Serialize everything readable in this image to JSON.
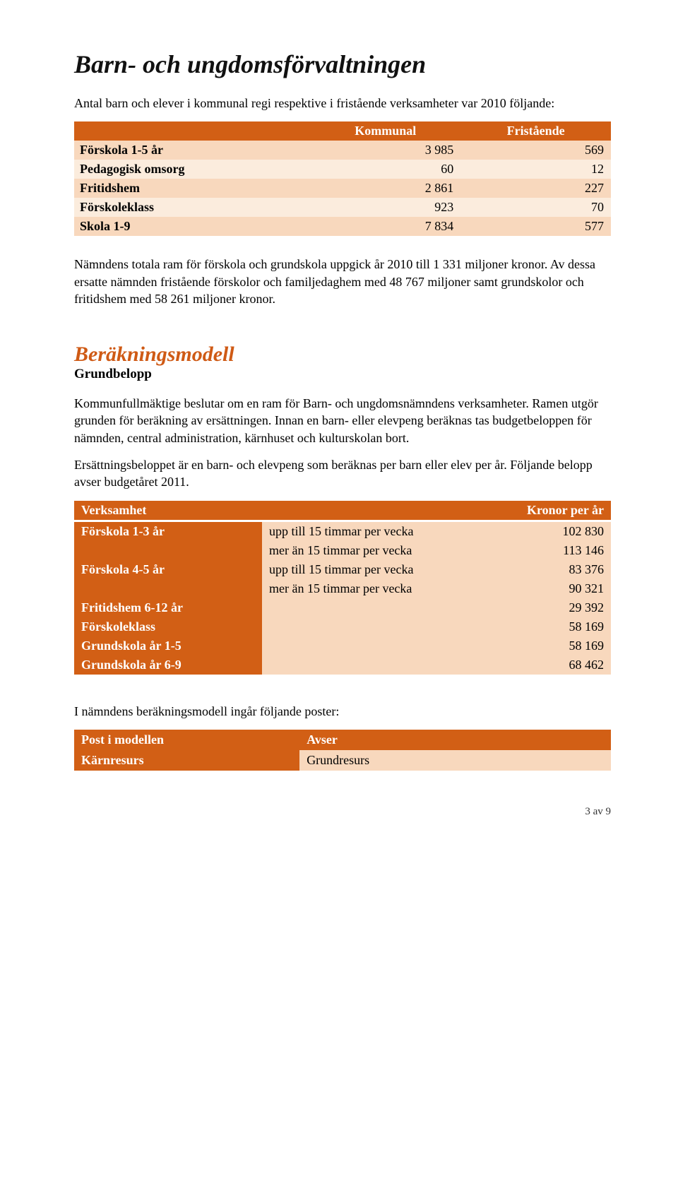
{
  "colors": {
    "brand": "#d25f15",
    "row_odd": "#f8d8bd",
    "row_even": "#fbecdd",
    "text": "#000000",
    "bg": "#ffffff"
  },
  "title": "Barn- och ungdomsförvaltningen",
  "intro": "Antal barn och elever i kommunal regi respektive i fristående verksamheter var 2010 följande:",
  "table1": {
    "headers": [
      "",
      "Kommunal",
      "Fristående"
    ],
    "rows": [
      {
        "label": "Förskola 1-5 år",
        "c1": "3 985",
        "c2": "569"
      },
      {
        "label": "Pedagogisk omsorg",
        "c1": "60",
        "c2": "12"
      },
      {
        "label": "Fritidshem",
        "c1": "2 861",
        "c2": "227"
      },
      {
        "label": "Förskoleklass",
        "c1": "923",
        "c2": "70"
      },
      {
        "label": "Skola 1-9",
        "c1": "7 834",
        "c2": "577"
      }
    ]
  },
  "para1": "Nämndens totala ram för förskola och grundskola uppgick år 2010 till 1 331 miljoner kronor. Av dessa ersatte nämnden fristående förskolor och familjedaghem med 48 767 miljoner samt grundskolor och fritidshem med 58 261 miljoner kronor.",
  "section2_title": "Beräkningsmodell",
  "section2_sub": "Grundbelopp",
  "para2": "Kommunfullmäktige beslutar om en ram för Barn- och ungdomsnämndens verksamheter. Ramen utgör grunden för beräkning av ersättningen. Innan en barn- eller elevpeng beräknas tas budgetbeloppen för nämnden, central administration, kärnhuset och kulturskolan bort.",
  "para3": "Ersättningsbeloppet är en barn- och elevpeng som beräknas per barn eller elev per år. Följande belopp avser budgetåret 2011.",
  "table2": {
    "head_left": "Verksamhet",
    "head_right": "Kronor per år",
    "rows": [
      {
        "label": "Förskola 1-3 år",
        "lines": [
          {
            "desc": "upp till 15 timmar per vecka",
            "amount": "102 830"
          },
          {
            "desc": "mer än 15 timmar per vecka",
            "amount": "113 146"
          }
        ]
      },
      {
        "label": "Förskola 4-5 år",
        "lines": [
          {
            "desc": "upp till 15 timmar per vecka",
            "amount": "83 376"
          },
          {
            "desc": "mer än 15 timmar per vecka",
            "amount": "90 321"
          }
        ]
      },
      {
        "label": "Fritidshem 6-12 år",
        "lines": [
          {
            "desc": "",
            "amount": "29 392"
          }
        ]
      },
      {
        "label": "Förskoleklass",
        "lines": [
          {
            "desc": "",
            "amount": "58 169"
          }
        ]
      },
      {
        "label": "Grundskola år 1-5",
        "lines": [
          {
            "desc": "",
            "amount": "58 169"
          }
        ]
      },
      {
        "label": "Grundskola år 6-9",
        "lines": [
          {
            "desc": "",
            "amount": "68 462"
          }
        ]
      }
    ]
  },
  "para4": "I nämndens beräkningsmodell ingår följande poster:",
  "table3": {
    "head_left": "Post i modellen",
    "head_right": "Avser",
    "rows": [
      {
        "c1": "Kärnresurs",
        "c2": "Grundresurs"
      }
    ]
  },
  "footer": "3 av 9"
}
